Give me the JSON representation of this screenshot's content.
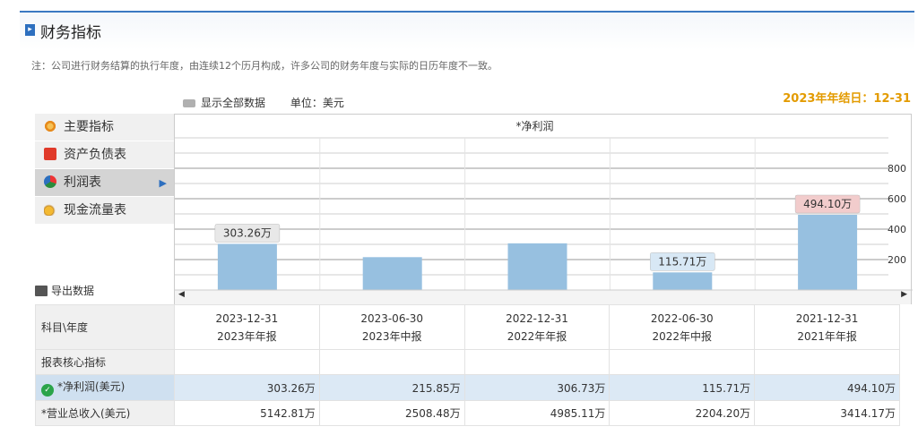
{
  "header": {
    "title": "财务指标"
  },
  "note": "注：公司进行财务结算的执行年度，由连续12个历月构成，许多公司的财务年度与实际的日历年度不一致。",
  "toolbar": {
    "show_all": "显示全部数据",
    "unit": "单位：美元"
  },
  "fiscal_year_end": "2023年年结日：12-31",
  "sidebar": {
    "items": [
      {
        "label": "主要指标",
        "icon": "gear-icon"
      },
      {
        "label": "资产负债表",
        "icon": "document-icon"
      },
      {
        "label": "利润表",
        "icon": "pie-chart-icon",
        "active": true
      },
      {
        "label": "现金流量表",
        "icon": "coins-icon"
      }
    ]
  },
  "export_label": "导出数据",
  "chart_data": {
    "type": "bar",
    "title": "*净利润",
    "categories": [
      "2023-12-31",
      "2023-06-30",
      "2022-12-31",
      "2022-06-30",
      "2021-12-31"
    ],
    "values": [
      303.26,
      215.85,
      306.73,
      115.71,
      494.1
    ],
    "ylim": [
      0,
      1000
    ],
    "yticks": [
      "200",
      "400",
      "600",
      "800"
    ],
    "data_labels": [
      {
        "index": 0,
        "text": "303.26万",
        "color": "#e8e8e8"
      },
      {
        "index": 3,
        "text": "115.71万",
        "color": "#d8e8f5"
      },
      {
        "index": 4,
        "text": "494.10万",
        "color": "#f2cccc"
      }
    ],
    "bar_color": "#97c0e0",
    "grid": true
  },
  "table": {
    "header_label": "科目\\年度",
    "columns": [
      {
        "date": "2023-12-31",
        "type": "2023年年报"
      },
      {
        "date": "2023-06-30",
        "type": "2023年中报"
      },
      {
        "date": "2022-12-31",
        "type": "2022年年报"
      },
      {
        "date": "2022-06-30",
        "type": "2022年中报"
      },
      {
        "date": "2021-12-31",
        "type": "2021年年报"
      }
    ],
    "section_label": "报表核心指标",
    "rows": [
      {
        "label": "*净利润(美元)",
        "values": [
          "303.26万",
          "215.85万",
          "306.73万",
          "115.71万",
          "494.10万"
        ]
      },
      {
        "label": "*营业总收入(美元)",
        "values": [
          "5142.81万",
          "2508.48万",
          "4985.11万",
          "2204.20万",
          "3414.17万"
        ]
      }
    ]
  }
}
